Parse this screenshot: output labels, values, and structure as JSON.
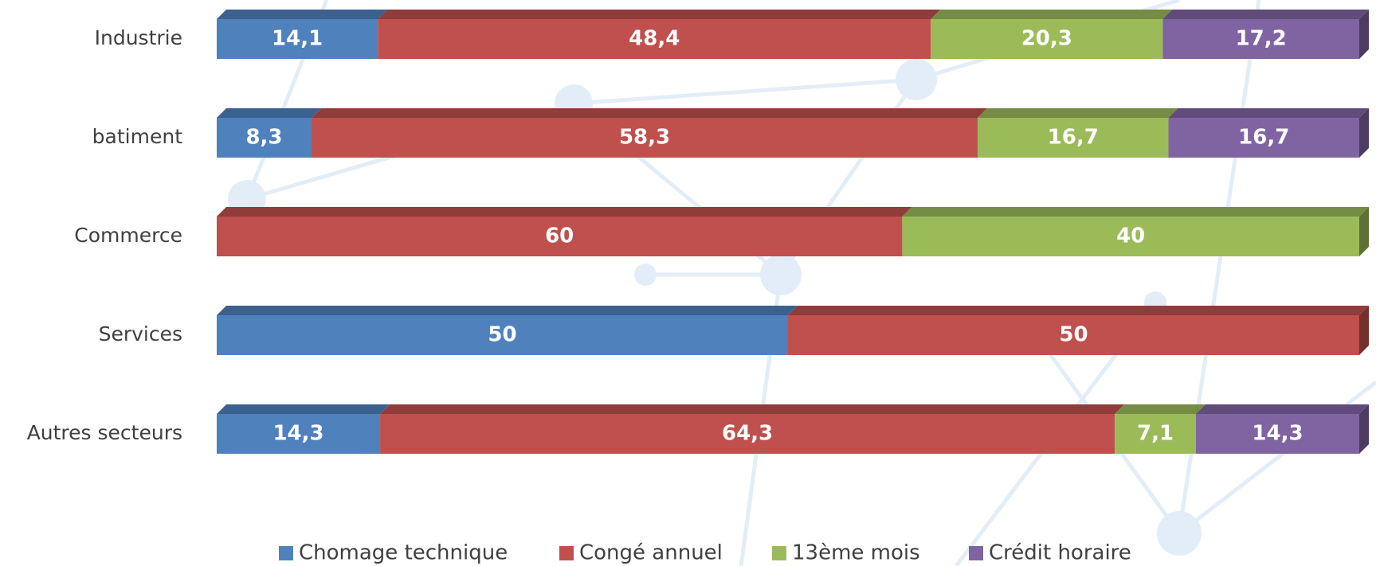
{
  "chart_data": {
    "type": "bar",
    "orientation": "horizontal",
    "stacked": true,
    "categories": [
      "Industrie",
      "batiment",
      "Commerce",
      "Services",
      "Autres secteurs"
    ],
    "xlim": [
      0,
      100
    ],
    "legend": "bottom",
    "series": [
      {
        "name": "Chomage technique",
        "color": "#4f81bd",
        "values": [
          14.1,
          8.3,
          null,
          50,
          14.3
        ],
        "value_labels": [
          "14,1",
          "8,3",
          null,
          "50",
          "14,3"
        ]
      },
      {
        "name": "Congé annuel",
        "color": "#c0504d",
        "values": [
          48.4,
          58.3,
          60,
          50,
          64.3
        ],
        "value_labels": [
          "48,4",
          "58,3",
          "60",
          "50",
          "64,3"
        ]
      },
      {
        "name": "13ème mois",
        "color": "#9bbb59",
        "values": [
          20.3,
          16.7,
          40,
          null,
          7.1
        ],
        "value_labels": [
          "20,3",
          "16,7",
          "40",
          null,
          "7,1"
        ]
      },
      {
        "name": "Crédit horaire",
        "color": "#8064a2",
        "values": [
          17.2,
          16.7,
          null,
          null,
          14.3
        ],
        "value_labels": [
          "17,2",
          "16,7",
          null,
          null,
          "14,3"
        ]
      }
    ]
  }
}
